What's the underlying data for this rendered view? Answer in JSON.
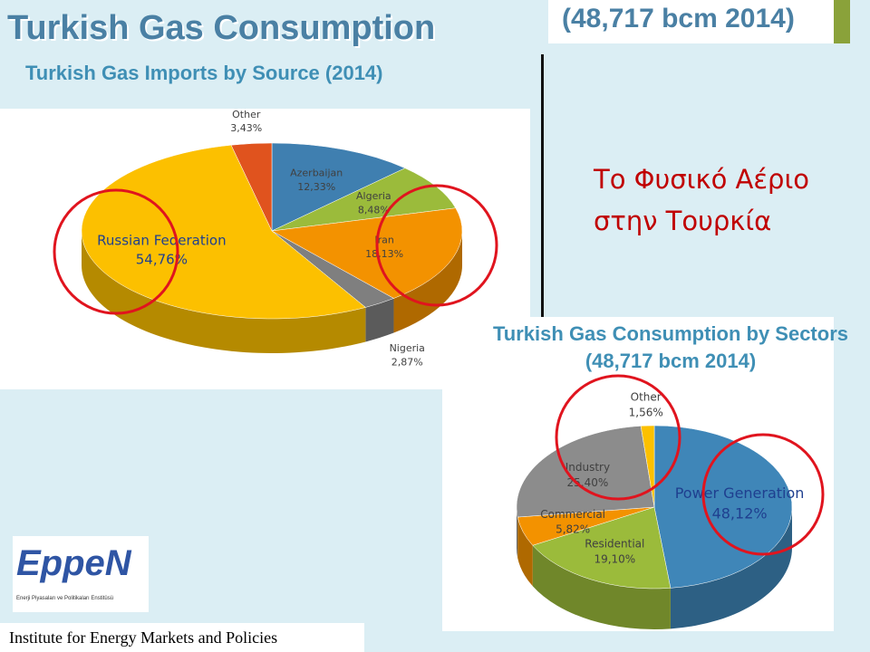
{
  "slide": {
    "header_title": "Turkish Gas Consumption",
    "header_subtitle": "(48,717 bcm 2014)",
    "greek_title": "Το Φυσικό Αέριο στην Τουρκία",
    "logo_text": "EppeN",
    "logo_subtitle": "Enerji Piyasaları ve Politikaları Enstitüsü",
    "footer": "Institute for Energy Markets and Policies"
  },
  "chart_data": [
    {
      "type": "pie",
      "title": "Turkish Gas Imports by Source (2014)",
      "categories": [
        "Azerbaijan",
        "Algeria",
        "Iran",
        "Nigeria",
        "Russian Federation",
        "Other"
      ],
      "values": [
        12.33,
        8.48,
        18.13,
        2.87,
        54.76,
        3.43
      ],
      "value_labels": [
        "12,33%",
        "8,48%",
        "18,13%",
        "2,87%",
        "54,76%",
        "3,43%"
      ],
      "colors": [
        "#3f7fb0",
        "#9bbb3b",
        "#f39200",
        "#7f7f7f",
        "#fcc000",
        "#e0531e"
      ]
    },
    {
      "type": "pie",
      "title": "Turkish Gas Consumption by Sectors (48,717 bcm 2014)",
      "categories": [
        "Power Generation",
        "Residential",
        "Commercial",
        "Industry",
        "Other"
      ],
      "values": [
        48.12,
        19.1,
        5.82,
        25.4,
        1.56
      ],
      "value_labels": [
        "48,12%",
        "19,10%",
        "5,82%",
        "25,40%",
        "1,56%"
      ],
      "colors": [
        "#3f86b8",
        "#9bbb3b",
        "#f39200",
        "#8c8c8c",
        "#fcc000"
      ]
    }
  ]
}
